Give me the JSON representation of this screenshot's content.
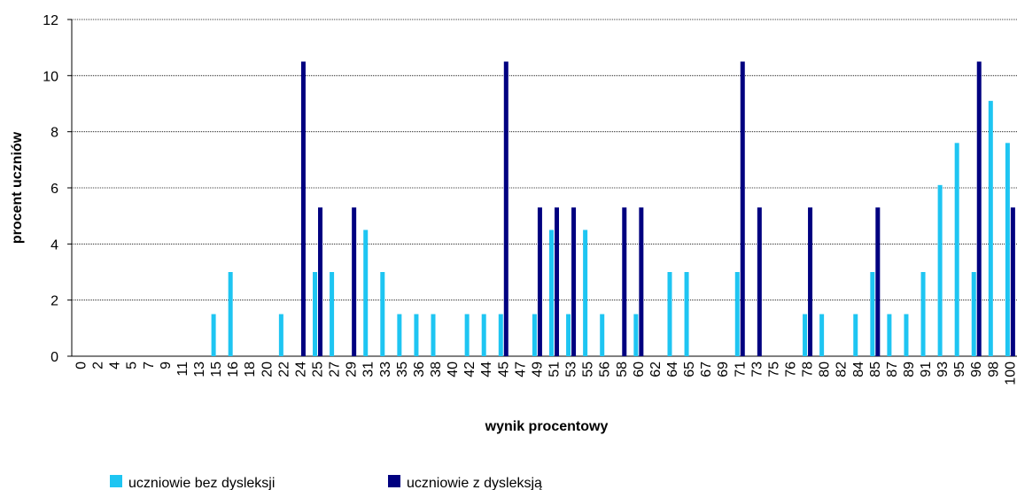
{
  "chart_data": {
    "type": "bar",
    "xlabel": "wynik procentowy",
    "ylabel": "procent uczniów",
    "categories": [
      "0",
      "2",
      "4",
      "5",
      "7",
      "9",
      "11",
      "13",
      "15",
      "16",
      "18",
      "20",
      "22",
      "24",
      "25",
      "27",
      "29",
      "31",
      "33",
      "35",
      "36",
      "38",
      "40",
      "42",
      "44",
      "45",
      "47",
      "49",
      "51",
      "53",
      "55",
      "56",
      "58",
      "60",
      "62",
      "64",
      "65",
      "67",
      "69",
      "71",
      "73",
      "75",
      "76",
      "78",
      "80",
      "82",
      "84",
      "85",
      "87",
      "89",
      "91",
      "93",
      "95",
      "96",
      "98",
      "100"
    ],
    "series": [
      {
        "name": "uczniowie bez dysleksji",
        "color": "#1ec5f2",
        "values": [
          0,
          0,
          0,
          0,
          0,
          0,
          0,
          0,
          1.5,
          3.0,
          0,
          0,
          1.5,
          0,
          3.0,
          3.0,
          0,
          4.5,
          3.0,
          1.5,
          1.5,
          1.5,
          0,
          1.5,
          1.5,
          1.5,
          0,
          1.5,
          4.5,
          1.5,
          4.5,
          1.5,
          0,
          1.5,
          0,
          3.0,
          3.0,
          0,
          0,
          3.0,
          0,
          0,
          0,
          1.5,
          1.5,
          0,
          1.5,
          3.0,
          1.5,
          1.5,
          3.0,
          6.1,
          7.6,
          3.0,
          9.1,
          7.6
        ]
      },
      {
        "name": "uczniowie z dysleksją",
        "color": "#000080",
        "values": [
          0,
          0,
          0,
          0,
          0,
          0,
          0,
          0,
          0,
          0,
          0,
          0,
          0,
          10.5,
          5.3,
          0,
          5.3,
          0,
          0,
          0,
          0,
          0,
          0,
          0,
          0,
          10.5,
          0,
          5.3,
          5.3,
          5.3,
          0,
          0,
          5.3,
          5.3,
          0,
          0,
          0,
          0,
          0,
          10.5,
          5.3,
          0,
          0,
          5.3,
          0,
          0,
          0,
          5.3,
          0,
          0,
          0,
          0,
          0,
          10.5,
          0,
          5.3
        ]
      }
    ],
    "ylim": [
      0,
      12
    ],
    "yticks": [
      0,
      2,
      4,
      6,
      8,
      10,
      12
    ],
    "grid": true,
    "legend": "bottom"
  }
}
